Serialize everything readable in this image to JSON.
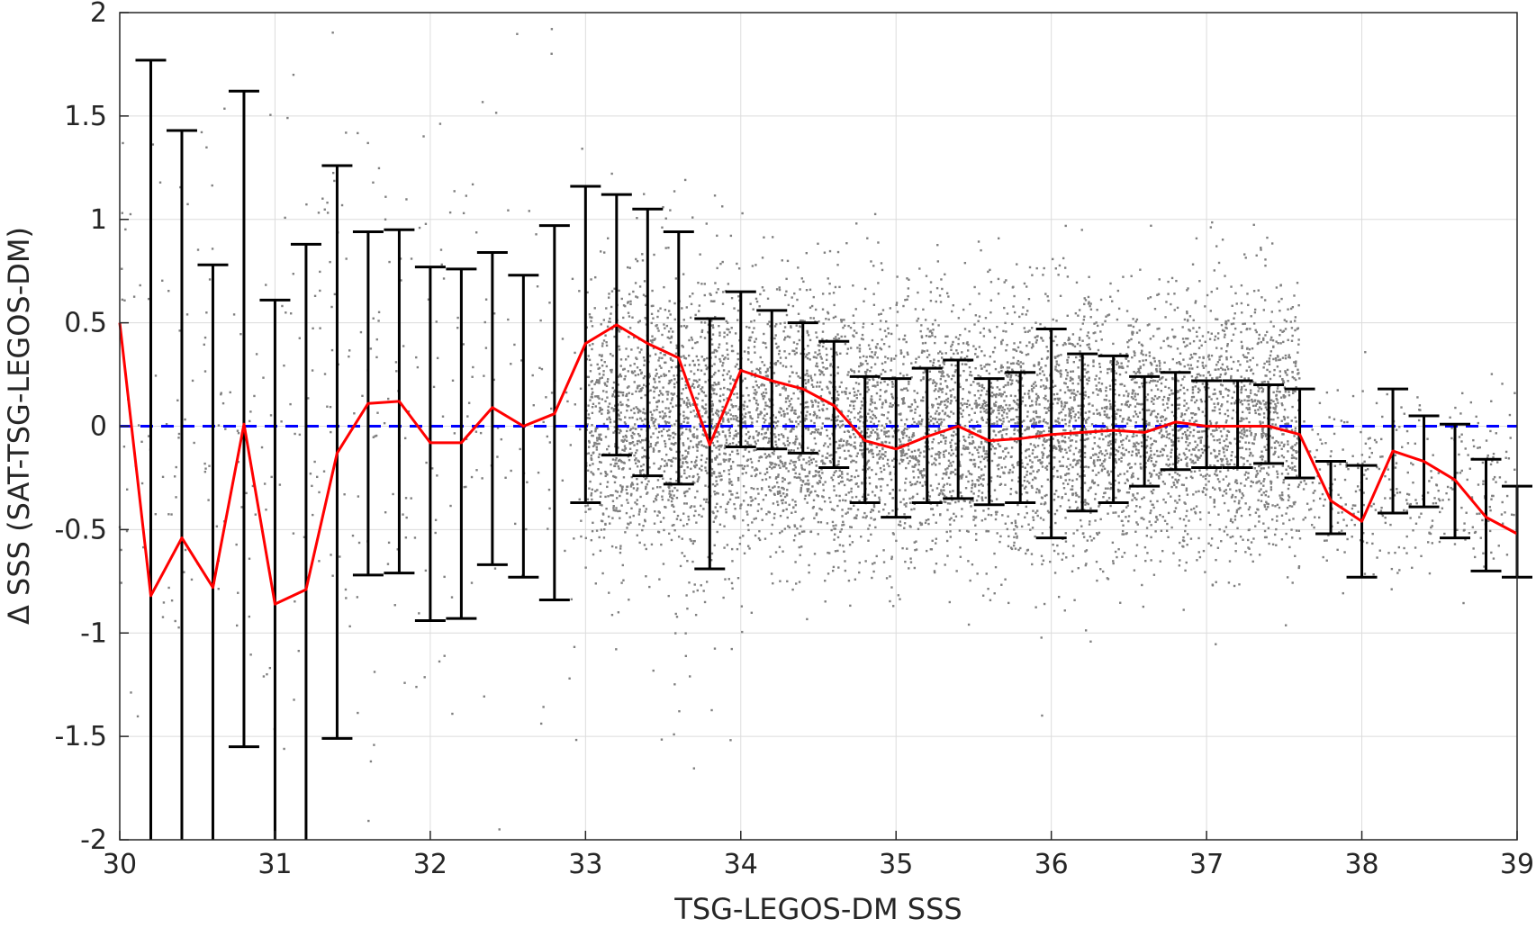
{
  "chart_data": {
    "type": "scatter",
    "xlabel": "TSG-LEGOS-DM SSS",
    "ylabel": "Δ SSS (SAT-TSG-LEGOS-DM)",
    "xlim": [
      30,
      39
    ],
    "ylim": [
      -2,
      2
    ],
    "xticks": [
      "30",
      "31",
      "32",
      "33",
      "34",
      "35",
      "36",
      "37",
      "38",
      "39"
    ],
    "yticks": [
      "2",
      "1.5",
      "1",
      "0.5",
      "0",
      "-0.5",
      "-1",
      "-1.5",
      "-2"
    ],
    "grid": true,
    "reference_line": {
      "y": 0,
      "style": "dashed",
      "color": "#0000ff"
    },
    "colors": {
      "scatter": "#808080",
      "mean_line": "#ff0000",
      "error_bars": "#000000",
      "axes": "#262626",
      "grid": "#dcdcdc"
    },
    "scatter_description_density": [
      {
        "x": [
          30.0,
          34.0
        ],
        "y_center": 0.0,
        "y_spread": 1.8,
        "count": 500
      },
      {
        "x": [
          33.0,
          37.6
        ],
        "y_center": 0.0,
        "y_spread": 0.7,
        "count": 7000
      },
      {
        "x": [
          37.6,
          39.0
        ],
        "y_center": -0.3,
        "y_spread": 0.5,
        "count": 350
      }
    ],
    "series": [
      {
        "type": "line",
        "x": [
          30.0,
          30.2,
          30.4,
          30.6,
          30.8,
          31.0,
          31.2,
          31.4,
          31.6,
          31.8,
          32.0,
          32.2,
          32.4,
          32.6,
          32.8,
          33.0,
          33.2,
          33.4,
          33.6,
          33.8,
          34.0,
          34.2,
          34.4,
          34.6,
          34.8,
          35.0,
          35.2,
          35.4,
          35.6,
          35.8,
          36.0,
          36.2,
          36.4,
          36.6,
          36.8,
          37.0,
          37.2,
          37.4,
          37.6,
          37.8,
          38.0,
          38.2,
          38.4,
          38.6,
          38.8,
          39.0
        ],
        "y": [
          0.5,
          -0.82,
          -0.54,
          -0.78,
          0.01,
          -0.86,
          -0.79,
          -0.13,
          0.11,
          0.12,
          -0.08,
          -0.08,
          0.09,
          0.0,
          0.06,
          0.4,
          0.49,
          0.4,
          0.33,
          -0.09,
          0.27,
          0.22,
          0.18,
          0.1,
          -0.07,
          -0.11,
          -0.05,
          0.0,
          -0.07,
          -0.06,
          -0.04,
          -0.03,
          -0.02,
          -0.03,
          0.02,
          0.0,
          0.0,
          0.0,
          -0.04,
          -0.36,
          -0.46,
          -0.12,
          -0.17,
          -0.26,
          -0.44,
          -0.52
        ]
      },
      {
        "type": "errorbar",
        "x": [
          30.2,
          30.4,
          30.6,
          30.8,
          31.0,
          31.2,
          31.4,
          31.6,
          31.8,
          32.0,
          32.2,
          32.4,
          32.6,
          32.8,
          33.0,
          33.2,
          33.4,
          33.6,
          33.8,
          34.0,
          34.2,
          34.4,
          34.6,
          34.8,
          35.0,
          35.2,
          35.4,
          35.6,
          35.8,
          36.0,
          36.2,
          36.4,
          36.6,
          36.8,
          37.0,
          37.2,
          37.4,
          37.6,
          37.8,
          38.0,
          38.2,
          38.4,
          38.6,
          38.8,
          39.0
        ],
        "upper": [
          1.77,
          1.43,
          0.78,
          1.62,
          0.61,
          0.88,
          1.26,
          0.94,
          0.95,
          0.77,
          0.76,
          0.84,
          0.73,
          0.97,
          1.16,
          1.12,
          1.05,
          0.94,
          0.52,
          0.65,
          0.56,
          0.5,
          0.41,
          0.24,
          0.23,
          0.28,
          0.32,
          0.23,
          0.26,
          0.47,
          0.35,
          0.34,
          0.24,
          0.26,
          0.22,
          0.22,
          0.2,
          0.18,
          -0.17,
          -0.19,
          0.18,
          0.05,
          0.01,
          -0.16,
          -0.29
        ],
        "lower": [
          -2.0,
          -2.0,
          -2.0,
          -1.55,
          -2.0,
          -2.0,
          -1.51,
          -0.72,
          -0.71,
          -0.94,
          -0.93,
          -0.67,
          -0.73,
          -0.84,
          -0.37,
          -0.14,
          -0.24,
          -0.28,
          -0.69,
          -0.1,
          -0.11,
          -0.13,
          -0.2,
          -0.37,
          -0.44,
          -0.37,
          -0.35,
          -0.38,
          -0.37,
          -0.54,
          -0.41,
          -0.37,
          -0.29,
          -0.21,
          -0.2,
          -0.2,
          -0.18,
          -0.25,
          -0.52,
          -0.73,
          -0.42,
          -0.39,
          -0.54,
          -0.7,
          -0.73
        ]
      }
    ]
  }
}
